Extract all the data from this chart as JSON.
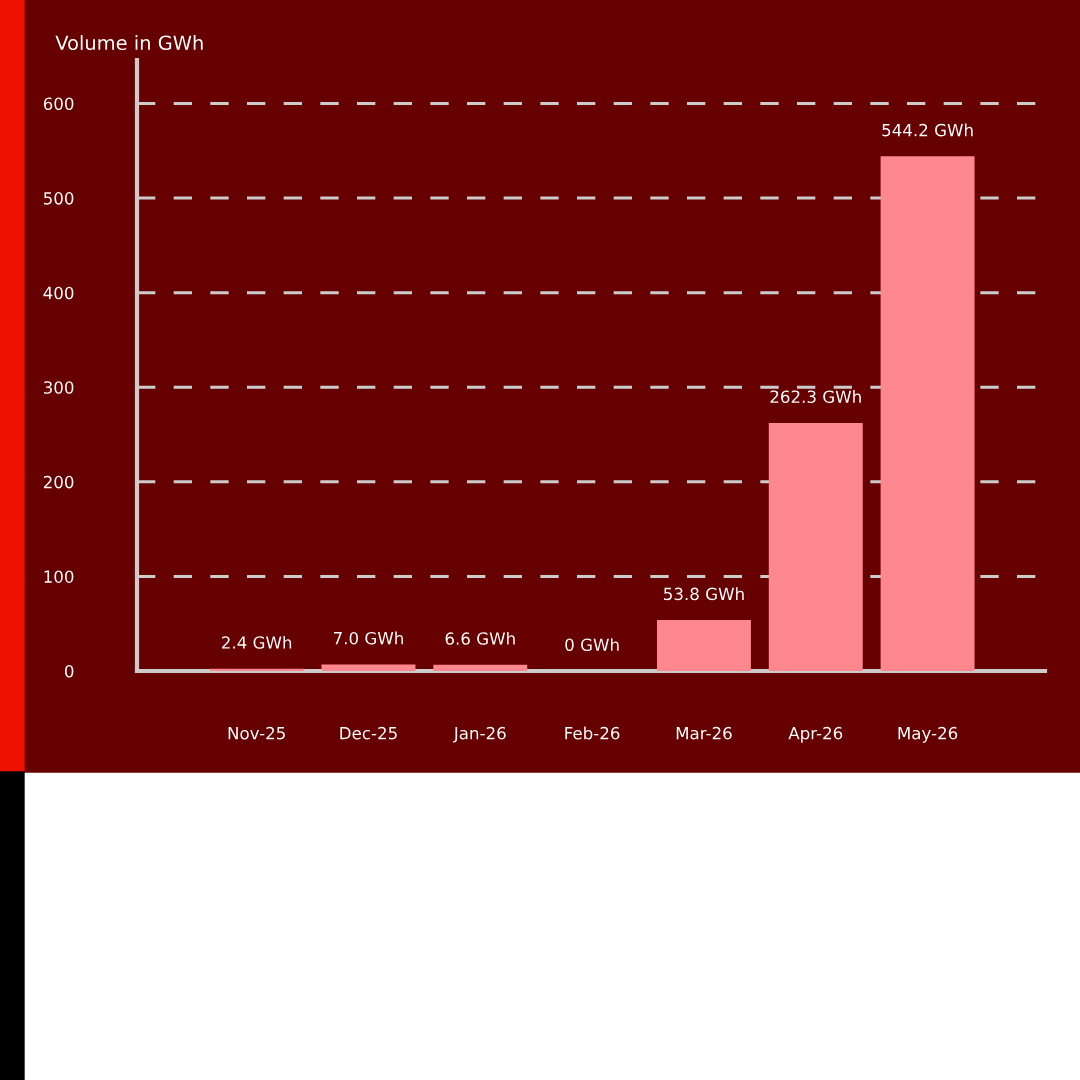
{
  "chart_data": {
    "type": "bar",
    "ylabel": "Volume in GWh",
    "categories": [
      "Nov-25",
      "Dec-25",
      "Jan-26",
      "Feb-26",
      "Mar-26",
      "Apr-26",
      "May-26"
    ],
    "values": [
      2.4,
      7.0,
      6.6,
      0,
      53.8,
      262.3,
      544.2
    ],
    "value_labels": [
      "2.4 GWh",
      "7.0 GWh",
      "6.6 GWh",
      "0 GWh",
      "53.8 GWh",
      "262.3 GWh",
      "544.2 GWh"
    ],
    "color": "#ff8890",
    "ylim": [
      0,
      646
    ],
    "yticks": [
      0,
      100,
      200,
      300,
      400,
      500,
      600
    ],
    "grid": "y",
    "legend": false
  }
}
